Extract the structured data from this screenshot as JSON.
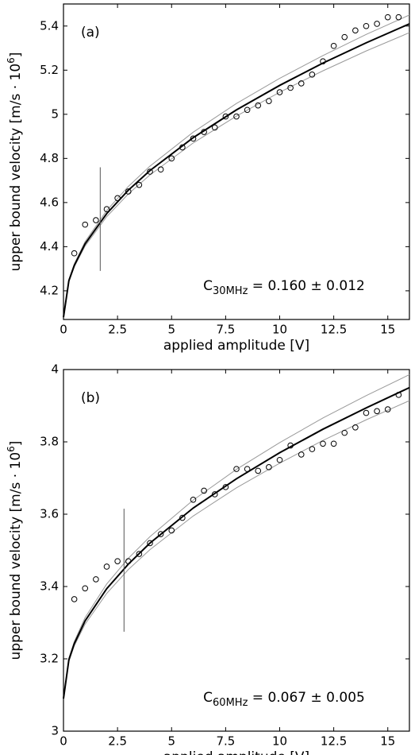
{
  "chart_data": [
    {
      "type": "scatter",
      "panel_label": "(a)",
      "xlabel": "applied amplitude [V]",
      "ylabel": {
        "text": "upper bound velocity [m/s · 10",
        "superscript": "6",
        "suffix": "]"
      },
      "annotation": {
        "base": "C",
        "subscript": "30MHz",
        "text": " = 0.160 ± 0.012"
      },
      "xlim": [
        0,
        16
      ],
      "xticks": [
        0,
        2.5,
        5,
        7.5,
        10,
        12.5,
        15
      ],
      "ylim": [
        4.07,
        5.5
      ],
      "yticks": [
        4.2,
        4.4,
        4.6,
        4.8,
        5,
        5.2,
        5.4
      ],
      "series": [
        {
          "style": "line",
          "color": "#999999",
          "x": [
            0,
            0.25,
            0.5,
            1,
            2,
            3,
            4,
            6,
            8,
            10,
            12,
            14,
            16
          ],
          "values": [
            4.08,
            4.251,
            4.322,
            4.423,
            4.564,
            4.673,
            4.765,
            4.919,
            5.049,
            5.163,
            5.266,
            5.362,
            5.45
          ]
        },
        {
          "style": "line",
          "color": "#999999",
          "x": [
            0,
            0.25,
            0.5,
            1,
            2,
            3,
            4,
            6,
            8,
            10,
            12,
            14,
            16
          ],
          "values": [
            4.08,
            4.241,
            4.308,
            4.403,
            4.536,
            4.639,
            4.725,
            4.87,
            4.992,
            5.1,
            5.197,
            5.287,
            5.37
          ]
        },
        {
          "style": "thick",
          "color": "#000000",
          "x": [
            0,
            0.25,
            0.5,
            1,
            2,
            3,
            4,
            6,
            8,
            10,
            12,
            14,
            16
          ],
          "values": [
            4.08,
            4.246,
            4.315,
            4.413,
            4.55,
            4.656,
            4.745,
            4.894,
            5.02,
            5.131,
            5.232,
            5.324,
            5.41
          ]
        },
        {
          "style": "line",
          "color": "#555555",
          "x": [
            1.7,
            1.7
          ],
          "values": [
            4.29,
            4.76
          ]
        },
        {
          "style": "marker",
          "color": "#000000",
          "x": [
            0.5,
            1,
            1.5,
            2,
            2.5,
            3,
            3.5,
            4,
            4.5,
            5,
            5.5,
            6,
            6.5,
            7,
            7.5,
            8,
            8.5,
            9,
            9.5,
            10,
            10.5,
            11,
            11.5,
            12,
            12.5,
            13,
            13.5,
            14,
            14.5,
            15,
            15.5
          ],
          "values": [
            4.37,
            4.5,
            4.52,
            4.57,
            4.62,
            4.65,
            4.68,
            4.74,
            4.75,
            4.8,
            4.85,
            4.89,
            4.92,
            4.94,
            4.99,
            4.99,
            5.02,
            5.04,
            5.06,
            5.1,
            5.12,
            5.14,
            5.18,
            5.24,
            5.31,
            5.35,
            5.38,
            5.4,
            5.41,
            5.44,
            5.44
          ]
        }
      ]
    },
    {
      "type": "scatter",
      "panel_label": "(b)",
      "xlabel": "applied amplitude [V]",
      "ylabel": {
        "text": "upper bound velocity [m/s · 10",
        "superscript": "6",
        "suffix": "]"
      },
      "annotation": {
        "base": "C",
        "subscript": "60MHz",
        "text": " = 0.067 ± 0.005"
      },
      "xlim": [
        0,
        16
      ],
      "xticks": [
        0,
        2.5,
        5,
        7.5,
        10,
        12.5,
        15
      ],
      "ylim": [
        3,
        4
      ],
      "yticks": [
        3,
        3.2,
        3.4,
        3.6,
        3.8,
        4
      ],
      "series": [
        {
          "style": "line",
          "color": "#999999",
          "x": [
            0,
            0.25,
            0.5,
            1,
            2,
            3,
            4,
            6,
            8,
            10,
            12,
            14,
            16
          ],
          "values": [
            3.09,
            3.202,
            3.248,
            3.314,
            3.407,
            3.478,
            3.538,
            3.639,
            3.724,
            3.798,
            3.866,
            3.928,
            3.986
          ]
        },
        {
          "style": "line",
          "color": "#999999",
          "x": [
            0,
            0.25,
            0.5,
            1,
            2,
            3,
            4,
            6,
            8,
            10,
            12,
            14,
            16
          ],
          "values": [
            3.09,
            3.193,
            3.236,
            3.296,
            3.381,
            3.447,
            3.502,
            3.595,
            3.673,
            3.741,
            3.804,
            3.861,
            3.914
          ]
        },
        {
          "style": "thick",
          "color": "#000000",
          "x": [
            0,
            0.25,
            0.5,
            1,
            2,
            3,
            4,
            6,
            8,
            10,
            12,
            14,
            16
          ],
          "values": [
            3.09,
            3.1975,
            3.242,
            3.305,
            3.394,
            3.462,
            3.52,
            3.617,
            3.698,
            3.77,
            3.835,
            3.894,
            3.95
          ]
        },
        {
          "style": "line",
          "color": "#555555",
          "x": [
            2.8,
            2.8
          ],
          "values": [
            3.275,
            3.615
          ]
        },
        {
          "style": "marker",
          "color": "#000000",
          "x": [
            0.5,
            1,
            1.5,
            2,
            2.5,
            3,
            3.5,
            4,
            4.5,
            5,
            5.5,
            6,
            6.5,
            7,
            7.5,
            8,
            8.5,
            9,
            9.5,
            10,
            10.5,
            11,
            11.5,
            12,
            12.5,
            13,
            13.5,
            14,
            14.5,
            15,
            15.5
          ],
          "values": [
            3.365,
            3.395,
            3.42,
            3.455,
            3.47,
            3.47,
            3.49,
            3.52,
            3.545,
            3.555,
            3.59,
            3.64,
            3.665,
            3.655,
            3.675,
            3.725,
            3.725,
            3.72,
            3.73,
            3.75,
            3.79,
            3.765,
            3.78,
            3.795,
            3.795,
            3.825,
            3.84,
            3.88,
            3.885,
            3.89,
            3.93
          ]
        }
      ]
    }
  ]
}
